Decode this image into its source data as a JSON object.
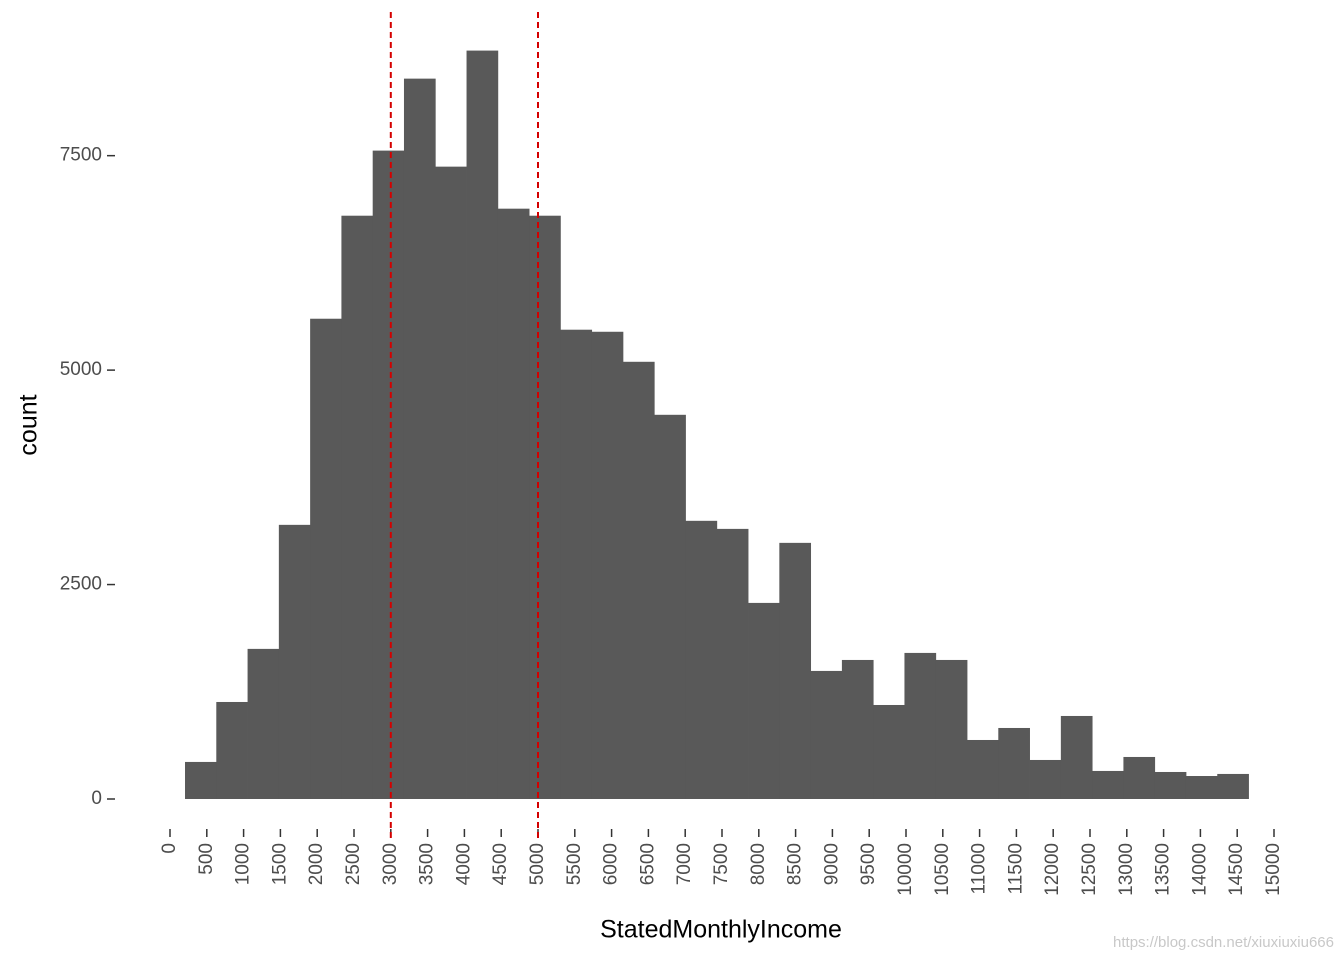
{
  "chart_data": {
    "type": "histogram",
    "x_label": "StatedMonthlyIncome",
    "y_label": "count",
    "bins": [
      204,
      629,
      1054,
      1479,
      1904,
      2329,
      2754,
      3179,
      3604,
      4029,
      4454,
      4879,
      5304,
      5729,
      6154,
      6579,
      7004,
      7429,
      7854,
      8279,
      8704,
      9129,
      9554,
      9979,
      10404,
      10829,
      11254,
      11679,
      12104,
      12529,
      12954,
      13379,
      13804,
      14229,
      14654
    ],
    "counts": [
      432,
      1131,
      1750,
      3196,
      5599,
      6800,
      7559,
      8398,
      7372,
      8725,
      6882,
      6800,
      5471,
      5447,
      5097,
      4479,
      3243,
      3149,
      2286,
      2986,
      1493,
      1621,
      1096,
      1703,
      1621,
      688,
      828,
      455,
      968,
      327,
      490,
      315,
      268,
      292
    ],
    "color": "#595959",
    "vlines": [
      3000,
      5000
    ],
    "vline_color": "#d40000",
    "xlim": [
      0,
      15000
    ],
    "xticks": [
      0,
      500,
      1000,
      1500,
      2000,
      2500,
      3000,
      3500,
      4000,
      4500,
      5000,
      5500,
      6000,
      6500,
      7000,
      7500,
      8000,
      8500,
      9000,
      9500,
      10000,
      10500,
      11000,
      11500,
      12000,
      12500,
      13000,
      13500,
      14000,
      14500,
      15000
    ],
    "ylim": [
      0,
      9000
    ],
    "yticks": [
      0,
      2500,
      5000,
      7500
    ],
    "grid": false
  },
  "watermark": "https://blog.csdn.net/xiuxiuxiu666"
}
